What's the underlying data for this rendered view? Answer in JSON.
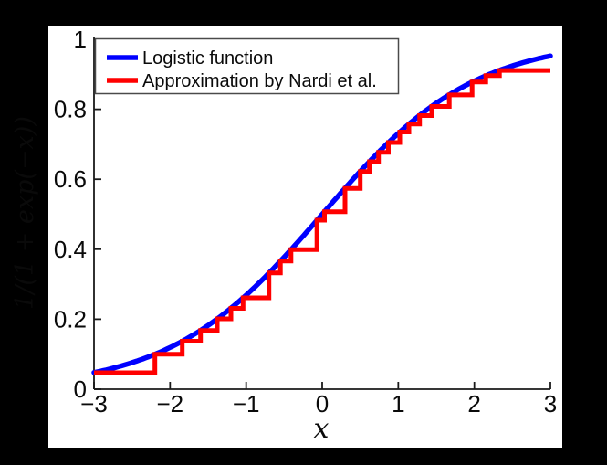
{
  "figure": {
    "background_color": "#000000",
    "panel_color": "#ffffff",
    "axis_color": "#1a1a1a",
    "legend_border_color": "#4a4a4a"
  },
  "chart_data": {
    "type": "line",
    "title": "",
    "xlabel": "x",
    "ylabel": "1/(1 + exp(−x))",
    "xlim": [
      -3,
      3
    ],
    "ylim": [
      0,
      1
    ],
    "grid": false,
    "legend_position": "top-left",
    "xticks": {
      "values": [
        -3,
        -2,
        -1,
        0,
        1,
        2,
        3
      ],
      "labels": [
        "−3",
        "−2",
        "−1",
        "0",
        "1",
        "2",
        "3"
      ]
    },
    "yticks": {
      "values": [
        0,
        0.2,
        0.4,
        0.6,
        0.8,
        1
      ],
      "labels": [
        "0",
        "0.2",
        "0.4",
        "0.6",
        "0.8",
        "1"
      ]
    },
    "series": [
      {
        "name": "Logistic function",
        "color": "#0000ff",
        "style": "smooth",
        "formula": "1/(1+exp(-x))",
        "points": [
          [
            -3,
            0.047
          ],
          [
            -2.75,
            0.06
          ],
          [
            -2.5,
            0.076
          ],
          [
            -2.25,
            0.095
          ],
          [
            -2,
            0.119
          ],
          [
            -1.75,
            0.148
          ],
          [
            -1.5,
            0.182
          ],
          [
            -1.25,
            0.223
          ],
          [
            -1,
            0.269
          ],
          [
            -0.75,
            0.321
          ],
          [
            -0.5,
            0.378
          ],
          [
            -0.25,
            0.438
          ],
          [
            0,
            0.5
          ],
          [
            0.25,
            0.562
          ],
          [
            0.5,
            0.622
          ],
          [
            0.75,
            0.679
          ],
          [
            1,
            0.731
          ],
          [
            1.25,
            0.777
          ],
          [
            1.5,
            0.818
          ],
          [
            1.75,
            0.852
          ],
          [
            2,
            0.881
          ],
          [
            2.25,
            0.905
          ],
          [
            2.5,
            0.924
          ],
          [
            2.75,
            0.94
          ],
          [
            3,
            0.953
          ]
        ]
      },
      {
        "name": "Approximation by Nardi et al.",
        "color": "#ff0000",
        "style": "staircase",
        "steps": [
          [
            -3.0,
            0.047
          ],
          [
            -2.2,
            0.1
          ],
          [
            -1.84,
            0.137
          ],
          [
            -1.6,
            0.168
          ],
          [
            -1.38,
            0.201
          ],
          [
            -1.2,
            0.231
          ],
          [
            -1.04,
            0.261
          ],
          [
            -0.7,
            0.332
          ],
          [
            -0.55,
            0.366
          ],
          [
            -0.41,
            0.399
          ],
          [
            -0.07,
            0.483
          ],
          [
            0.03,
            0.507
          ],
          [
            0.3,
            0.574
          ],
          [
            0.5,
            0.622
          ],
          [
            0.62,
            0.65
          ],
          [
            0.74,
            0.677
          ],
          [
            0.87,
            0.705
          ],
          [
            1.02,
            0.735
          ],
          [
            1.14,
            0.758
          ],
          [
            1.28,
            0.782
          ],
          [
            1.44,
            0.808
          ],
          [
            1.67,
            0.841
          ],
          [
            1.97,
            0.878
          ],
          [
            2.15,
            0.896
          ],
          [
            2.33,
            0.911
          ]
        ],
        "x_end": 3.0
      }
    ]
  }
}
